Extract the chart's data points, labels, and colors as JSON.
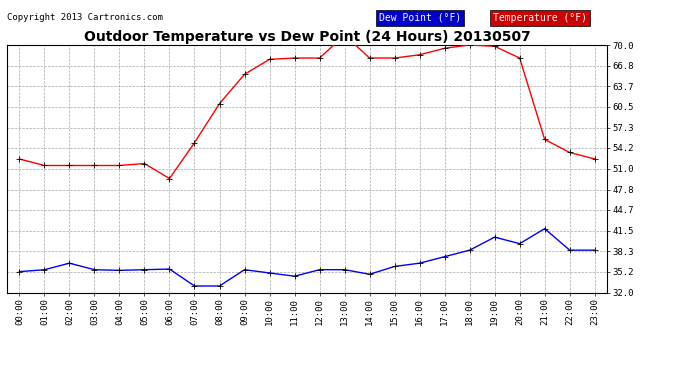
{
  "title": "Outdoor Temperature vs Dew Point (24 Hours) 20130507",
  "copyright": "Copyright 2013 Cartronics.com",
  "x_labels": [
    "00:00",
    "01:00",
    "02:00",
    "03:00",
    "04:00",
    "05:00",
    "06:00",
    "07:00",
    "08:00",
    "09:00",
    "10:00",
    "11:00",
    "12:00",
    "13:00",
    "14:00",
    "15:00",
    "16:00",
    "17:00",
    "18:00",
    "19:00",
    "20:00",
    "21:00",
    "22:00",
    "23:00"
  ],
  "temperature": [
    52.5,
    51.5,
    51.5,
    51.5,
    51.5,
    51.8,
    49.5,
    55.0,
    61.0,
    65.5,
    67.8,
    68.0,
    68.0,
    71.5,
    68.0,
    68.0,
    68.5,
    69.5,
    70.0,
    69.8,
    68.0,
    55.5,
    53.5,
    52.5
  ],
  "dew_point": [
    35.2,
    35.5,
    36.5,
    35.5,
    35.4,
    35.5,
    35.6,
    33.0,
    33.0,
    35.5,
    35.0,
    34.5,
    35.5,
    35.5,
    34.8,
    36.0,
    36.5,
    37.5,
    38.5,
    40.5,
    39.5,
    41.8,
    38.5,
    38.5
  ],
  "temp_color": "#ff0000",
  "dew_color": "#0000ff",
  "marker": "+",
  "bg_color": "#ffffff",
  "grid_color": "#aaaaaa",
  "ylim_min": 32.0,
  "ylim_max": 70.0,
  "yticks": [
    32.0,
    35.2,
    38.3,
    41.5,
    44.7,
    47.8,
    51.0,
    54.2,
    57.3,
    60.5,
    63.7,
    66.8,
    70.0
  ],
  "legend_dew_label": "Dew Point (°F)",
  "legend_temp_label": "Temperature (°F)",
  "legend_dew_bg": "#0000cc",
  "legend_temp_bg": "#cc0000",
  "legend_text_color": "#ffffff"
}
